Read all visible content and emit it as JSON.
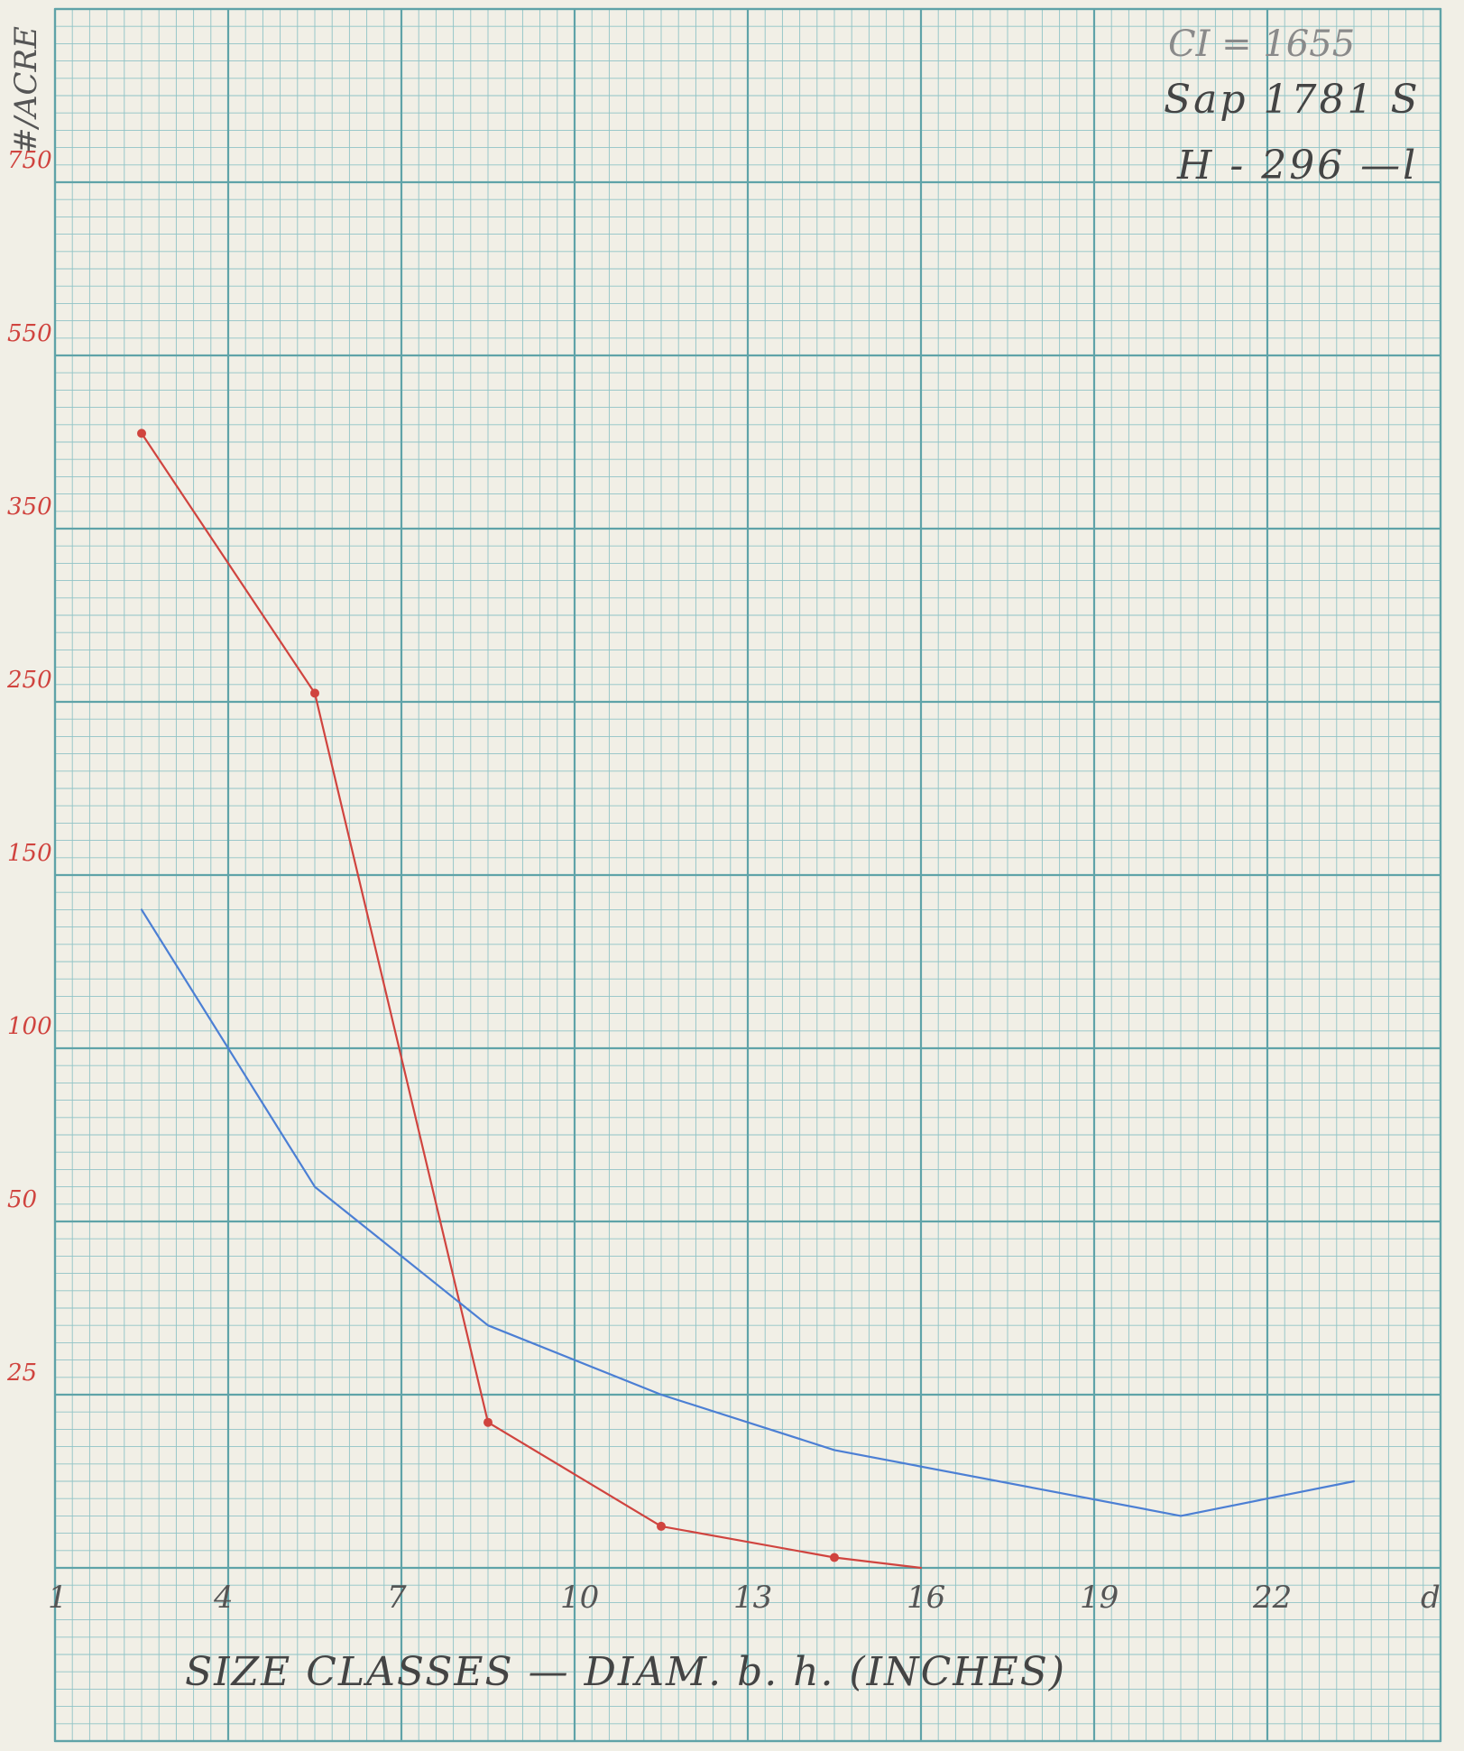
{
  "chart_data": {
    "type": "line",
    "title": "",
    "xlabel": "SIZE CLASSES — DIAM. b. h. (INCHES)",
    "ylabel": "#/ACRE",
    "x_ticks": [
      "1",
      "4",
      "7",
      "10",
      "13",
      "16",
      "19",
      "22",
      "d"
    ],
    "y_ticks": [
      {
        "value": 0,
        "label": ""
      },
      {
        "value": 25,
        "label": "25"
      },
      {
        "value": 50,
        "label": "50"
      },
      {
        "value": 100,
        "label": "100"
      },
      {
        "value": 150,
        "label": "150"
      },
      {
        "value": 250,
        "label": "250"
      },
      {
        "value": 350,
        "label": "350"
      },
      {
        "value": 550,
        "label": "550"
      },
      {
        "value": 750,
        "label": "750"
      }
    ],
    "grid": true,
    "annotations": [
      "CI = 1655",
      "Sap 1781 S",
      "H - 296 —l"
    ],
    "series": [
      {
        "color": "#d0443f",
        "markers": true,
        "x": [
          2.5,
          5.5,
          8.5,
          11.5,
          14.5,
          16
        ],
        "y": [
          460,
          255,
          21,
          6,
          1.5,
          0
        ]
      },
      {
        "color": "#4c7fd4",
        "markers": false,
        "x": [
          2.5,
          5.5,
          8.5,
          11.5,
          14.5,
          20.5,
          23.5
        ],
        "y": [
          140,
          60,
          35,
          25,
          17,
          7.5,
          12.5
        ]
      }
    ]
  }
}
